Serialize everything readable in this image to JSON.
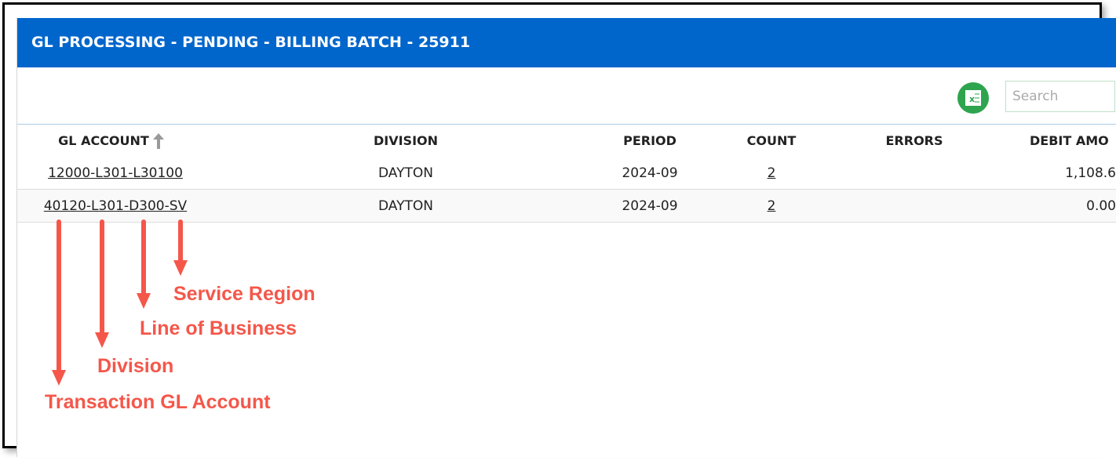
{
  "header": {
    "title": "GL PROCESSING - PENDING - BILLING BATCH - 25911"
  },
  "toolbar": {
    "search_placeholder": "Search"
  },
  "table": {
    "columns": [
      "GL ACCOUNT",
      "DIVISION",
      "PERIOD",
      "COUNT",
      "ERRORS",
      "DEBIT AMO"
    ],
    "rows": [
      {
        "gl_account": "12000-L301-L30100",
        "division": "DAYTON",
        "period": "2024-09",
        "count": "2",
        "debit": "1,108.6"
      },
      {
        "gl_account": "40120-L301-D300-SV",
        "division": "DAYTON",
        "period": "2024-09",
        "count": "2",
        "debit": "0.00"
      }
    ]
  },
  "annotations": [
    "Service Region",
    "Line of Business",
    "Division",
    "Transaction GL Account"
  ]
}
